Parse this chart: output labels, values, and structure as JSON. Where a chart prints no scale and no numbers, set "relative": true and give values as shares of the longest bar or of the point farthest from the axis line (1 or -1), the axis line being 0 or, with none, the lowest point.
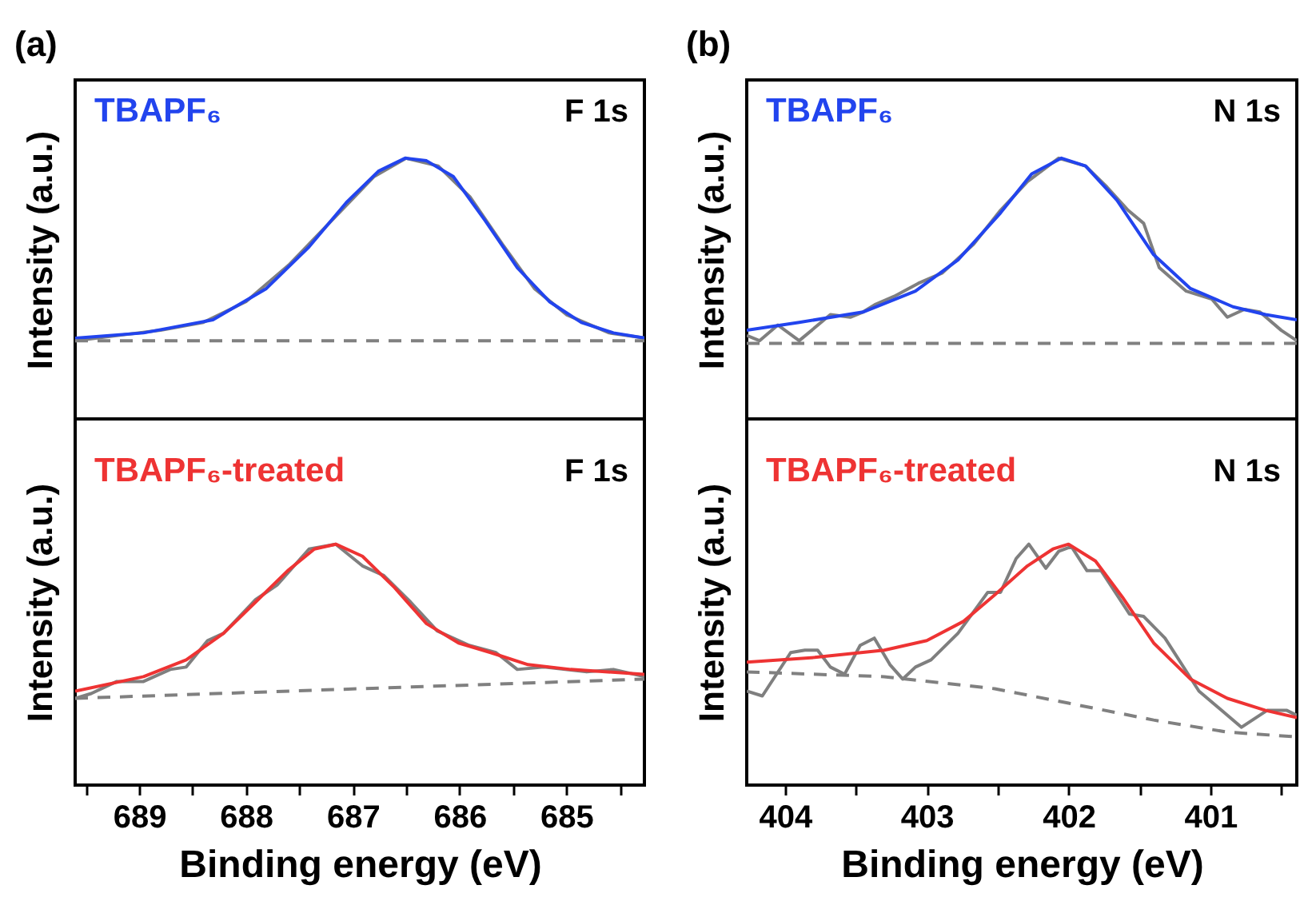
{
  "chart_data": [
    {
      "type": "line",
      "title": "(a)",
      "ylabel": "Intensity (a.u.)",
      "relative": true,
      "xlim": [
        689.6,
        684.27
      ],
      "tick_labels": false,
      "annotations": [
        "F 1s"
      ],
      "series": [
        {
          "color": "#7f7f7f",
          "x": [
            689.6,
            689.2,
            688.8,
            688.4,
            688.0,
            687.6,
            687.2,
            686.8,
            686.5,
            686.2,
            685.9,
            685.6,
            685.3,
            685.0,
            684.6,
            684.27
          ],
          "values": [
            0.3,
            0.32,
            0.34,
            0.37,
            0.45,
            0.59,
            0.76,
            0.93,
            1.0,
            0.97,
            0.85,
            0.67,
            0.5,
            0.4,
            0.33,
            0.31
          ]
        },
        {
          "name": "TBAPF₆",
          "color": "#2244ee",
          "x": [
            689.6,
            688.96,
            688.31,
            687.81,
            687.41,
            687.06,
            686.76,
            686.51,
            686.31,
            686.06,
            685.76,
            685.46,
            685.16,
            684.86,
            684.56,
            684.27
          ],
          "values": [
            0.31,
            0.33,
            0.38,
            0.5,
            0.66,
            0.83,
            0.95,
            1.0,
            0.99,
            0.93,
            0.76,
            0.58,
            0.45,
            0.37,
            0.33,
            0.31
          ]
        },
        {
          "color": "#808080",
          "line_style": "dashed",
          "x": [
            689.6,
            684.27
          ],
          "values": [
            0.3,
            0.3
          ]
        }
      ]
    },
    {
      "type": "line",
      "title": "(b)",
      "ylabel": "Intensity (a.u.)",
      "relative": true,
      "xlim": [
        404.27,
        400.39
      ],
      "tick_labels": false,
      "annotations": [
        "N 1s"
      ],
      "series": [
        {
          "color": "#7f7f7f",
          "x": [
            404.27,
            404.18,
            404.05,
            403.9,
            403.68,
            403.54,
            403.45,
            403.36,
            403.23,
            403.06,
            402.89,
            402.67,
            402.48,
            402.29,
            402.07,
            401.88,
            401.73,
            401.58,
            401.47,
            401.36,
            401.17,
            400.99,
            400.88,
            400.76,
            400.65,
            400.5,
            400.39
          ],
          "values": [
            0.32,
            0.3,
            0.36,
            0.3,
            0.4,
            0.39,
            0.41,
            0.44,
            0.47,
            0.52,
            0.56,
            0.67,
            0.8,
            0.91,
            1.0,
            0.97,
            0.89,
            0.8,
            0.75,
            0.58,
            0.49,
            0.46,
            0.39,
            0.42,
            0.41,
            0.34,
            0.3
          ]
        },
        {
          "name": "TBAPF₆",
          "color": "#2244ee",
          "x": [
            404.27,
            403.9,
            403.45,
            403.08,
            402.78,
            402.48,
            402.26,
            402.05,
            401.88,
            401.66,
            401.4,
            401.14,
            400.84,
            400.61,
            400.39
          ],
          "values": [
            0.34,
            0.37,
            0.41,
            0.49,
            0.61,
            0.79,
            0.94,
            1.0,
            0.97,
            0.84,
            0.63,
            0.5,
            0.43,
            0.4,
            0.38
          ]
        },
        {
          "color": "#808080",
          "line_style": "dashed",
          "x": [
            404.27,
            400.39
          ],
          "values": [
            0.29,
            0.29
          ]
        }
      ]
    },
    {
      "type": "line",
      "ylabel": "Intensity (a.u.)",
      "xlabel": "Binding energy (eV)",
      "relative": true,
      "xlim": [
        689.6,
        684.27
      ],
      "xticks": [
        {
          "value": 689.5,
          "label": null
        },
        689,
        {
          "value": 688.5,
          "label": null
        },
        688,
        {
          "value": 687.5,
          "label": null
        },
        687,
        {
          "value": 686.5,
          "label": null
        },
        686,
        {
          "value": 685.5,
          "label": null
        },
        685,
        {
          "value": 684.5,
          "label": null
        }
      ],
      "tick_labels": "x",
      "annotations": [
        "F 1s"
      ],
      "series": [
        {
          "color": "#7f7f7f",
          "x": [
            689.6,
            689.45,
            689.21,
            688.96,
            688.71,
            688.56,
            688.36,
            688.21,
            687.91,
            687.71,
            687.41,
            687.16,
            686.91,
            686.71,
            686.46,
            686.21,
            685.91,
            685.66,
            685.46,
            685.21,
            684.81,
            684.56,
            684.27
          ],
          "values": [
            0.36,
            0.38,
            0.43,
            0.43,
            0.48,
            0.49,
            0.6,
            0.63,
            0.77,
            0.83,
            0.98,
            1.0,
            0.91,
            0.87,
            0.76,
            0.64,
            0.58,
            0.55,
            0.48,
            0.49,
            0.47,
            0.48,
            0.45
          ]
        },
        {
          "name": "TBAPF₆-treated",
          "color": "#ee3333",
          "x": [
            689.6,
            688.96,
            688.56,
            688.21,
            687.91,
            687.61,
            687.36,
            687.16,
            686.91,
            686.61,
            686.31,
            686.01,
            685.71,
            685.36,
            684.96,
            684.27
          ],
          "values": [
            0.39,
            0.45,
            0.52,
            0.63,
            0.76,
            0.89,
            0.98,
            1.0,
            0.95,
            0.82,
            0.67,
            0.59,
            0.55,
            0.5,
            0.48,
            0.46
          ]
        },
        {
          "color": "#808080",
          "line_style": "dashed",
          "x": [
            689.6,
            684.27
          ],
          "values": [
            0.36,
            0.44
          ]
        }
      ]
    },
    {
      "type": "line",
      "ylabel": "Intensity (a.u.)",
      "xlabel": "Binding energy (eV)",
      "relative": true,
      "xlim": [
        404.27,
        400.39
      ],
      "xticks": [
        404,
        {
          "value": 403.5,
          "label": null
        },
        403,
        {
          "value": 402.5,
          "label": null
        },
        402,
        {
          "value": 401.5,
          "label": null
        },
        401,
        {
          "value": 400.5,
          "label": null
        }
      ],
      "tick_labels": "x",
      "annotations": [
        "N 1s"
      ],
      "series": [
        {
          "color": "#7f7f7f",
          "x": [
            404.27,
            404.16,
            403.96,
            403.86,
            403.77,
            403.68,
            403.58,
            403.47,
            403.37,
            403.26,
            403.17,
            403.08,
            402.97,
            402.78,
            402.57,
            402.48,
            402.37,
            402.28,
            402.16,
            402.07,
            401.98,
            401.87,
            401.77,
            401.57,
            401.47,
            401.32,
            401.08,
            400.78,
            400.6,
            400.46,
            400.39
          ],
          "values": [
            0.39,
            0.37,
            0.55,
            0.56,
            0.56,
            0.49,
            0.46,
            0.58,
            0.61,
            0.5,
            0.44,
            0.49,
            0.52,
            0.63,
            0.8,
            0.8,
            0.94,
            1.0,
            0.9,
            0.97,
            0.99,
            0.89,
            0.89,
            0.71,
            0.7,
            0.61,
            0.39,
            0.24,
            0.31,
            0.31,
            0.29
          ]
        },
        {
          "name": "TBAPF₆-treated",
          "color": "#ee3333",
          "x": [
            404.27,
            403.79,
            403.3,
            403.0,
            402.74,
            402.52,
            402.29,
            402.11,
            402.0,
            401.81,
            401.62,
            401.4,
            401.14,
            400.88,
            400.61,
            400.39
          ],
          "values": [
            0.51,
            0.53,
            0.56,
            0.6,
            0.68,
            0.79,
            0.91,
            0.98,
            1.0,
            0.93,
            0.78,
            0.59,
            0.44,
            0.36,
            0.31,
            0.28
          ]
        },
        {
          "color": "#808080",
          "line_style": "dashed",
          "x": [
            404.27,
            403.3,
            402.52,
            402.0,
            401.4,
            400.88,
            400.39
          ],
          "values": [
            0.47,
            0.45,
            0.4,
            0.34,
            0.27,
            0.22,
            0.2
          ]
        }
      ]
    }
  ]
}
